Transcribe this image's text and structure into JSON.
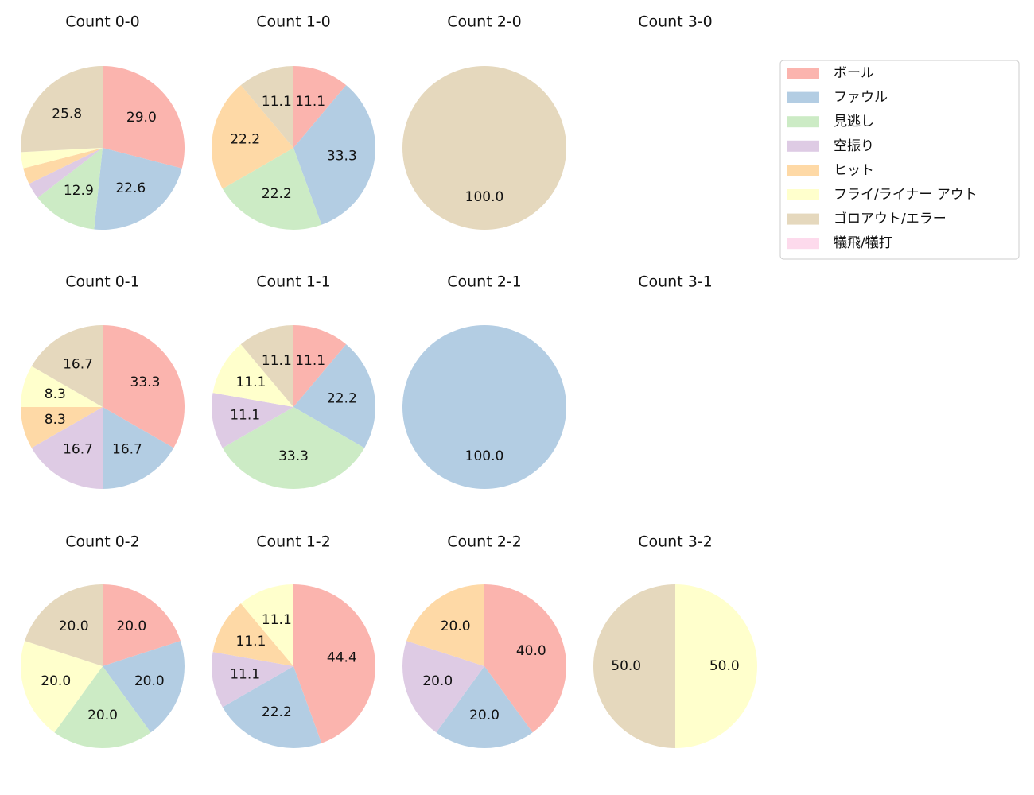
{
  "chart_data": [
    {
      "type": "pie",
      "title": "Count 0-0",
      "values": [
        29.0,
        22.6,
        12.9,
        3.2,
        3.2,
        3.2,
        25.8,
        null
      ],
      "value_labels": [
        "29.0",
        "22.6",
        "12.9",
        null,
        null,
        null,
        "25.8",
        null
      ]
    },
    {
      "type": "pie",
      "title": "Count 1-0",
      "values": [
        11.1,
        33.3,
        22.2,
        null,
        22.2,
        null,
        11.1,
        null
      ],
      "value_labels": [
        "11.1",
        "33.3",
        "22.2",
        null,
        "22.2",
        null,
        "11.1",
        null
      ]
    },
    {
      "type": "pie",
      "title": "Count 2-0",
      "values": [
        null,
        null,
        null,
        null,
        null,
        null,
        100.0,
        null
      ],
      "value_labels": [
        null,
        null,
        null,
        null,
        null,
        null,
        "100.0",
        null
      ]
    },
    {
      "type": "pie",
      "title": "Count 3-0",
      "values": [
        null,
        null,
        null,
        null,
        null,
        null,
        null,
        null
      ],
      "value_labels": [
        null,
        null,
        null,
        null,
        null,
        null,
        null,
        null
      ]
    },
    {
      "type": "pie",
      "title": "Count 0-1",
      "values": [
        33.3,
        16.7,
        null,
        16.7,
        8.3,
        8.3,
        16.7,
        null
      ],
      "value_labels": [
        "33.3",
        "16.7",
        null,
        "16.7",
        "8.3",
        "8.3",
        "16.7",
        null
      ]
    },
    {
      "type": "pie",
      "title": "Count 1-1",
      "values": [
        11.1,
        22.2,
        33.3,
        11.1,
        null,
        11.1,
        11.1,
        null
      ],
      "value_labels": [
        "11.1",
        "22.2",
        "33.3",
        "11.1",
        null,
        "11.1",
        "11.1",
        null
      ]
    },
    {
      "type": "pie",
      "title": "Count 2-1",
      "values": [
        null,
        100.0,
        null,
        null,
        null,
        null,
        null,
        null
      ],
      "value_labels": [
        null,
        "100.0",
        null,
        null,
        null,
        null,
        null,
        null
      ]
    },
    {
      "type": "pie",
      "title": "Count 3-1",
      "values": [
        null,
        null,
        null,
        null,
        null,
        null,
        null,
        null
      ],
      "value_labels": [
        null,
        null,
        null,
        null,
        null,
        null,
        null,
        null
      ]
    },
    {
      "type": "pie",
      "title": "Count 0-2",
      "values": [
        20.0,
        20.0,
        20.0,
        null,
        null,
        20.0,
        20.0,
        null
      ],
      "value_labels": [
        "20.0",
        "20.0",
        "20.0",
        null,
        null,
        "20.0",
        "20.0",
        null
      ]
    },
    {
      "type": "pie",
      "title": "Count 1-2",
      "values": [
        44.4,
        22.2,
        null,
        11.1,
        11.1,
        11.1,
        null,
        null
      ],
      "value_labels": [
        "44.4",
        "22.2",
        null,
        "11.1",
        "11.1",
        "11.1",
        null,
        null
      ]
    },
    {
      "type": "pie",
      "title": "Count 2-2",
      "values": [
        40.0,
        20.0,
        null,
        20.0,
        20.0,
        null,
        null,
        null
      ],
      "value_labels": [
        "40.0",
        "20.0",
        null,
        "20.0",
        "20.0",
        null,
        null,
        null
      ]
    },
    {
      "type": "pie",
      "title": "Count 3-2",
      "values": [
        null,
        null,
        null,
        null,
        null,
        50.0,
        50.0,
        null
      ],
      "value_labels": [
        null,
        null,
        null,
        null,
        null,
        "50.0",
        "50.0",
        null
      ]
    }
  ],
  "legend": {
    "position": "upper right",
    "labels": [
      "ボール",
      "ファウル",
      "見逃し",
      "空振り",
      "ヒット",
      "フライ/ライナー アウト",
      "ゴロアウト/エラー",
      "犠飛/犠打"
    ],
    "colors": [
      "#fbb4ae",
      "#b3cde3",
      "#ccebc5",
      "#decbe4",
      "#fed9a6",
      "#ffffcc",
      "#e5d8bd",
      "#fddaec"
    ]
  }
}
